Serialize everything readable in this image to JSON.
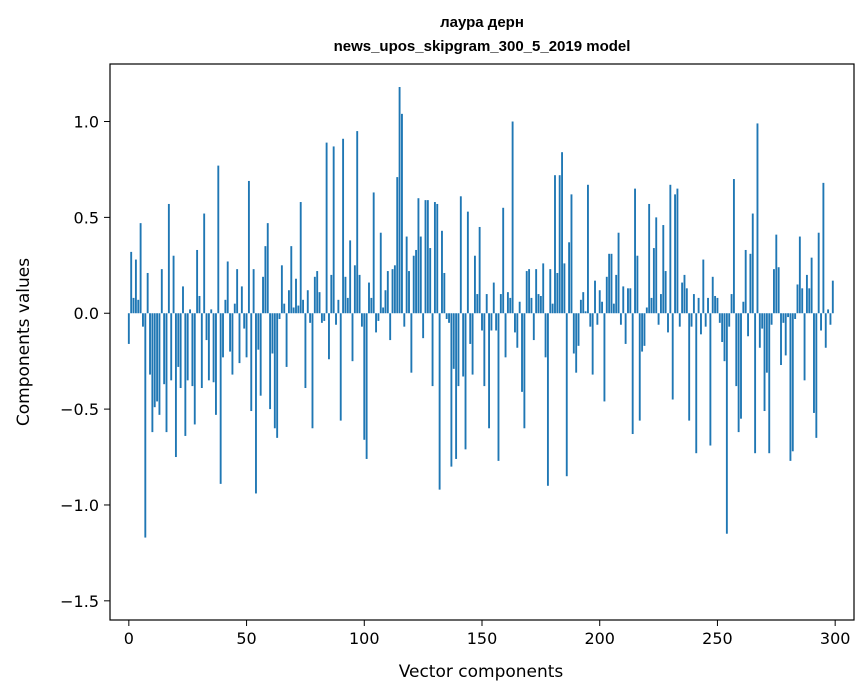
{
  "chart_data": {
    "type": "bar",
    "title": "лаура дерн",
    "subtitle": "news_upos_skipgram_300_5_2019 model",
    "xlabel": "Vector components",
    "ylabel": "Components values",
    "xlim": [
      -8,
      308
    ],
    "ylim": [
      -1.6,
      1.3
    ],
    "xticks": [
      0,
      50,
      100,
      150,
      200,
      250,
      300
    ],
    "xtick_labels": [
      "0",
      "50",
      "100",
      "150",
      "200",
      "250",
      "300"
    ],
    "yticks": [
      -1.5,
      -1.0,
      -0.5,
      0.0,
      0.5,
      1.0
    ],
    "ytick_labels": [
      "−1.5",
      "−1.0",
      "−0.5",
      "0.0",
      "0.5",
      "1.0"
    ],
    "bar_color": "#1f77b4",
    "values": [
      -0.16,
      0.32,
      0.08,
      0.28,
      0.07,
      0.47,
      -0.07,
      -1.17,
      0.21,
      -0.32,
      -0.62,
      -0.49,
      -0.46,
      -0.53,
      0.23,
      -0.37,
      -0.62,
      0.57,
      -0.35,
      0.3,
      -0.75,
      -0.28,
      -0.39,
      0.14,
      -0.64,
      -0.35,
      0.02,
      -0.38,
      -0.58,
      0.33,
      0.09,
      -0.39,
      0.52,
      -0.14,
      -0.35,
      0.02,
      -0.36,
      -0.53,
      0.77,
      -0.89,
      -0.23,
      0.07,
      0.27,
      -0.2,
      -0.32,
      0.05,
      0.23,
      -0.26,
      0.14,
      -0.08,
      -0.23,
      0.69,
      -0.51,
      0.23,
      -0.94,
      -0.19,
      -0.43,
      0.19,
      0.35,
      0.47,
      -0.5,
      -0.21,
      -0.6,
      -0.65,
      -0.03,
      0.25,
      0.05,
      -0.28,
      0.12,
      0.35,
      0.03,
      0.18,
      0.04,
      0.58,
      0.07,
      -0.39,
      0.12,
      -0.05,
      -0.6,
      0.19,
      0.22,
      0.11,
      -0.05,
      -0.04,
      0.89,
      -0.24,
      0.2,
      0.87,
      -0.06,
      0.07,
      -0.56,
      0.91,
      0.19,
      0.08,
      0.38,
      -0.25,
      0.25,
      0.95,
      0.2,
      -0.07,
      -0.66,
      -0.76,
      0.16,
      0.08,
      0.63,
      -0.1,
      -0.04,
      0.42,
      0.03,
      0.12,
      0.22,
      -0.14,
      0.23,
      0.25,
      0.71,
      1.18,
      1.04,
      -0.07,
      0.4,
      0.22,
      -0.31,
      0.3,
      0.33,
      0.6,
      0.4,
      -0.13,
      0.59,
      0.59,
      0.34,
      -0.38,
      0.58,
      0.57,
      -0.92,
      0.43,
      0.21,
      -0.03,
      -0.05,
      -0.8,
      -0.29,
      -0.76,
      -0.38,
      0.61,
      -0.33,
      -0.71,
      0.53,
      -0.16,
      -0.32,
      0.3,
      0.1,
      0.45,
      -0.09,
      -0.38,
      0.1,
      -0.6,
      -0.09,
      0.16,
      -0.09,
      -0.77,
      0.1,
      0.55,
      -0.23,
      0.11,
      0.08,
      1.0,
      -0.1,
      -0.18,
      0.06,
      -0.41,
      -0.6,
      0.22,
      0.23,
      0.08,
      -0.14,
      0.23,
      0.1,
      0.09,
      0.26,
      -0.23,
      -0.9,
      0.23,
      0.05,
      0.72,
      0.21,
      0.72,
      0.84,
      0.26,
      -0.85,
      0.37,
      0.62,
      -0.21,
      -0.31,
      -0.17,
      0.07,
      0.11,
      0.01,
      0.67,
      -0.07,
      -0.32,
      0.17,
      -0.06,
      0.12,
      0.06,
      -0.46,
      0.19,
      0.31,
      0.31,
      0.05,
      0.2,
      0.42,
      -0.06,
      0.14,
      -0.16,
      0.13,
      0.13,
      -0.63,
      0.65,
      0.3,
      -0.56,
      -0.2,
      -0.17,
      0.03,
      0.57,
      0.08,
      0.34,
      0.5,
      -0.06,
      0.1,
      0.46,
      0.22,
      -0.1,
      0.67,
      -0.45,
      0.62,
      0.65,
      -0.07,
      0.16,
      0.2,
      0.13,
      -0.56,
      -0.07,
      0.1,
      -0.73,
      0.08,
      -0.11,
      0.28,
      -0.07,
      0.08,
      -0.69,
      0.19,
      0.09,
      0.08,
      -0.05,
      -0.15,
      -0.25,
      -1.15,
      -0.07,
      0.1,
      0.7,
      -0.38,
      -0.62,
      -0.55,
      0.06,
      0.33,
      -0.12,
      0.31,
      0.52,
      -0.73,
      0.99,
      -0.18,
      -0.08,
      -0.51,
      -0.31,
      -0.73,
      -0.06,
      0.23,
      0.41,
      0.24,
      -0.27,
      -0.05,
      -0.22,
      -0.02,
      -0.77,
      -0.72,
      -0.03,
      0.15,
      0.4,
      0.13,
      -0.35,
      0.2,
      0.13,
      0.29,
      -0.52,
      -0.65,
      0.42,
      -0.09,
      0.68,
      -0.18,
      0.02,
      -0.06,
      0.17
    ]
  }
}
